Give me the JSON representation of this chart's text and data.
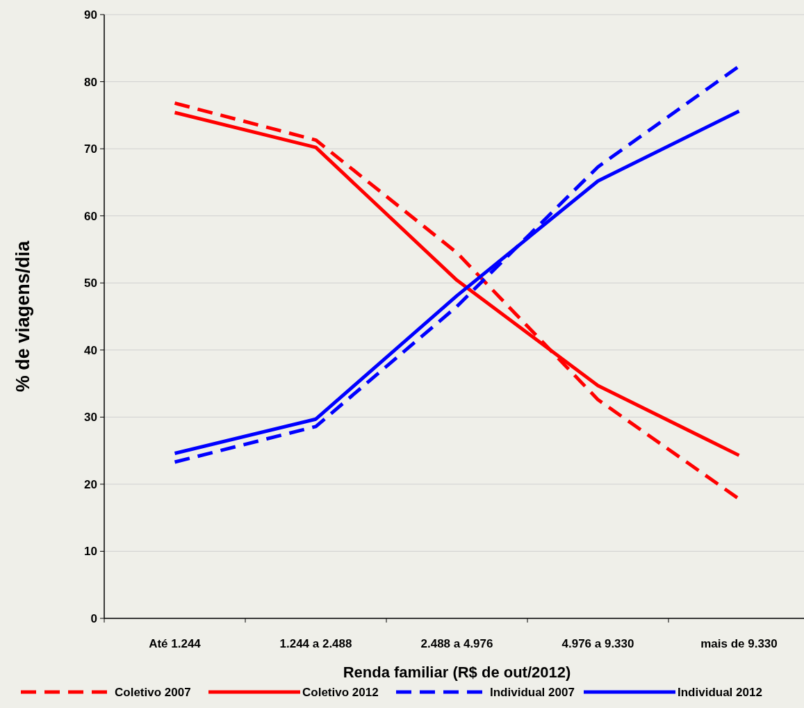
{
  "chart_data": {
    "type": "line",
    "xlabel": "Renda familiar (R$ de out/2012)",
    "ylabel": "% de viagens/dia",
    "categories": [
      "Até 1.244",
      "1.244 a 2.488",
      "2.488 a 4.976",
      "4.976 a 9.330",
      "mais de 9.330"
    ],
    "ylim": [
      0,
      90
    ],
    "yticks": [
      0,
      10,
      20,
      30,
      40,
      50,
      60,
      70,
      80,
      90
    ],
    "grid": "y",
    "legend": "bottom",
    "marker": "none",
    "series": [
      {
        "name": "Coletivo 2007",
        "color": "#ff0000",
        "line_style": "dashed",
        "values": [
          76.8,
          71.3,
          54.5,
          32.6,
          17.8
        ]
      },
      {
        "name": "Coletivo 2012",
        "color": "#ff0000",
        "line_style": "solid",
        "values": [
          75.4,
          70.2,
          50.4,
          34.7,
          24.3
        ]
      },
      {
        "name": "Individual 2007",
        "color": "#0000ff",
        "line_style": "dashed",
        "values": [
          23.3,
          28.6,
          46.5,
          67.3,
          82.3
        ]
      },
      {
        "name": "Individual 2012",
        "color": "#0000ff",
        "line_style": "solid",
        "values": [
          24.6,
          29.7,
          48.1,
          65.2,
          75.6
        ]
      }
    ]
  }
}
